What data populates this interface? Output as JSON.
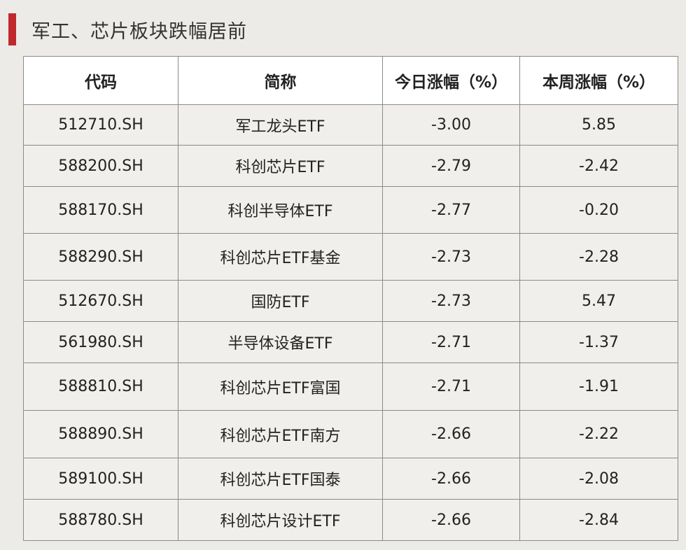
{
  "title": "军工、芯片板块跌幅居前",
  "colors": {
    "accent": "#c0282e",
    "background": "#ecebe8",
    "header_bg": "#ffffff",
    "border": "#8a8a8a"
  },
  "table": {
    "headers": [
      "代码",
      "简称",
      "今日涨幅（%）",
      "本周涨幅（%）"
    ],
    "rows": [
      [
        "512710.SH",
        "军工龙头ETF",
        "-3.00",
        "5.85"
      ],
      [
        "588200.SH",
        "科创芯片ETF",
        "-2.79",
        "-2.42"
      ],
      [
        "588170.SH",
        "科创半导体ETF",
        "-2.77",
        "-0.20"
      ],
      [
        "588290.SH",
        "科创芯片ETF基金",
        "-2.73",
        "-2.28"
      ],
      [
        "512670.SH",
        "国防ETF",
        "-2.73",
        "5.47"
      ],
      [
        "561980.SH",
        "半导体设备ETF",
        "-2.71",
        "-1.37"
      ],
      [
        "588810.SH",
        "科创芯片ETF富国",
        "-2.71",
        "-1.91"
      ],
      [
        "588890.SH",
        "科创芯片ETF南方",
        "-2.66",
        "-2.22"
      ],
      [
        "589100.SH",
        "科创芯片ETF国泰",
        "-2.66",
        "-2.08"
      ],
      [
        "588780.SH",
        "科创芯片设计ETF",
        "-2.66",
        "-2.84"
      ]
    ]
  }
}
